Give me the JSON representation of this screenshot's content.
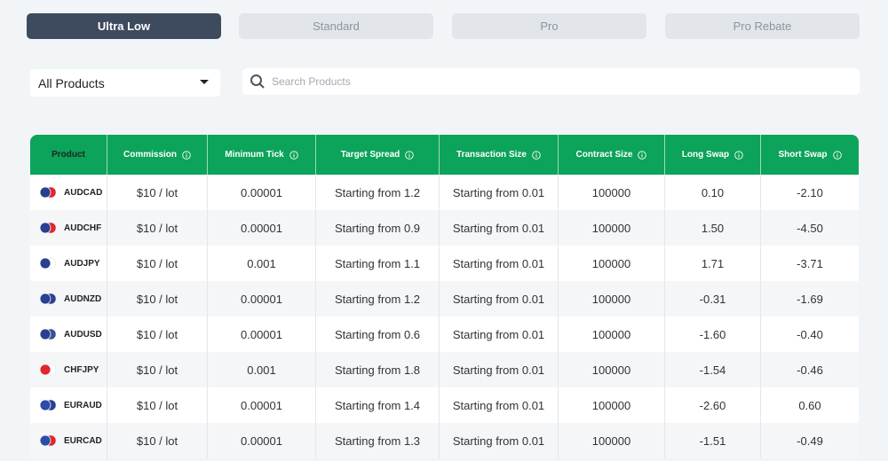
{
  "tabs": [
    "Ultra Low",
    "Standard",
    "Pro",
    "Pro Rebate"
  ],
  "filter": "All Products",
  "search_placeholder": "Search Products",
  "table": {
    "headers": [
      "Product",
      "Commission",
      "Minimum Tick",
      "Target Spread",
      "Transaction Size",
      "Contract Size",
      "Long Swap",
      "Short Swap"
    ],
    "rows": [
      [
        "AUDCAD",
        "$10 / lot",
        "0.00001",
        "Starting from 1.2",
        "Starting from 0.01",
        "100000",
        "0.10",
        "-2.10"
      ],
      [
        "AUDCHF",
        "$10 / lot",
        "0.00001",
        "Starting from 0.9",
        "Starting from 0.01",
        "100000",
        "1.50",
        "-4.50"
      ],
      [
        "AUDJPY",
        "$10 / lot",
        "0.001",
        "Starting from 1.1",
        "Starting from 0.01",
        "100000",
        "1.71",
        "-3.71"
      ],
      [
        "AUDNZD",
        "$10 / lot",
        "0.00001",
        "Starting from 1.2",
        "Starting from 0.01",
        "100000",
        "-0.31",
        "-1.69"
      ],
      [
        "AUDUSD",
        "$10 / lot",
        "0.00001",
        "Starting from 0.6",
        "Starting from 0.01",
        "100000",
        "-1.60",
        "-0.40"
      ],
      [
        "CHFJPY",
        "$10 / lot",
        "0.001",
        "Starting from 1.8",
        "Starting from 0.01",
        "100000",
        "-1.54",
        "-0.46"
      ],
      [
        "EURAUD",
        "$10 / lot",
        "0.00001",
        "Starting from 1.4",
        "Starting from 0.01",
        "100000",
        "-2.60",
        "0.60"
      ],
      [
        "EURCAD",
        "$10 / lot",
        "0.00001",
        "Starting from 1.3",
        "Starting from 0.01",
        "100000",
        "-1.51",
        "-0.49"
      ]
    ]
  }
}
